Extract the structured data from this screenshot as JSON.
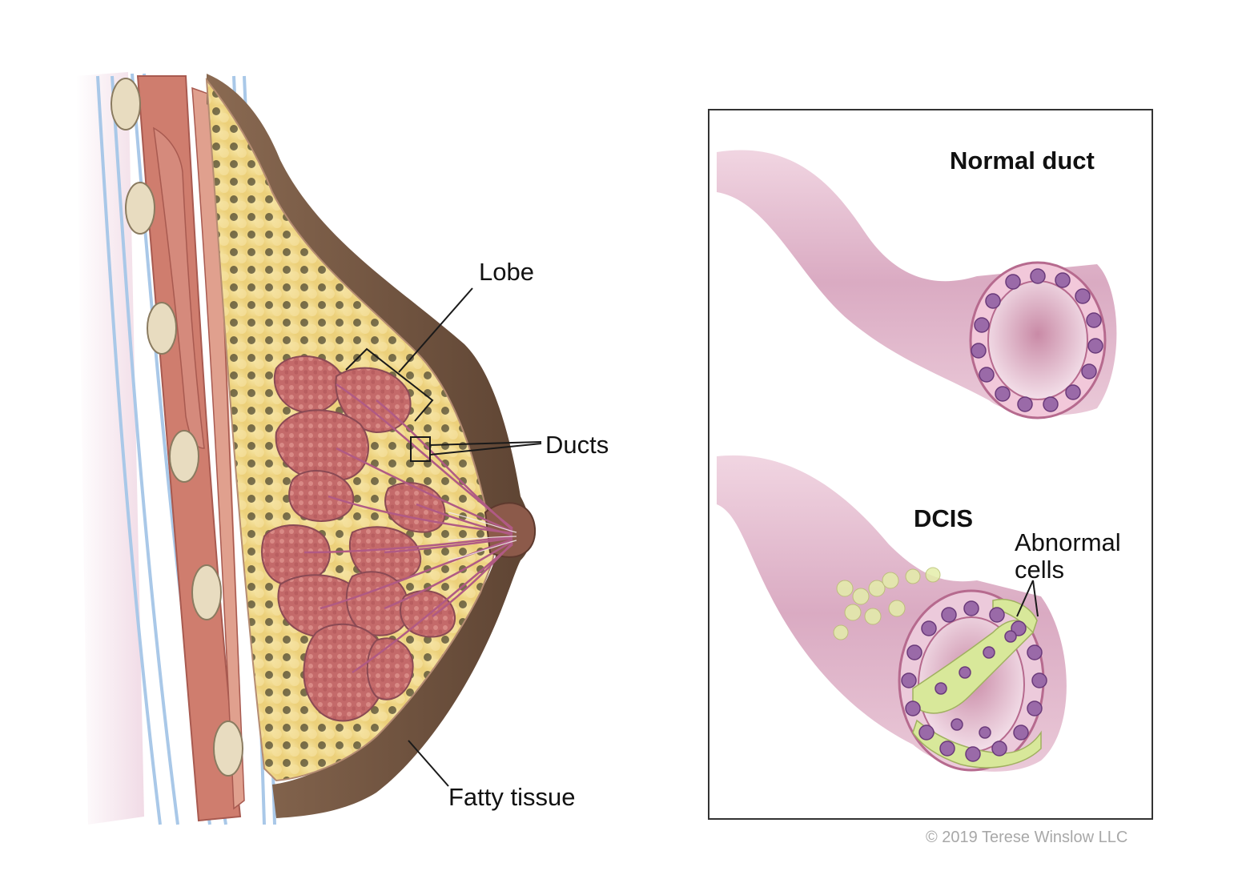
{
  "labels": {
    "lobe": "Lobe",
    "ducts": "Ducts",
    "fatty_tissue": "Fatty tissue",
    "normal_duct": "Normal duct",
    "dcis": "DCIS",
    "abnormal_cells_line1": "Abnormal",
    "abnormal_cells_line2": "cells"
  },
  "copyright": "© 2019 Terese Winslow LLC",
  "colors": {
    "skin": "#7a5a44",
    "fat": "#f3dc8c",
    "lobule": "#c96e6e",
    "muscle": "#cf7d6e",
    "duct_wall": "#e4b8cc",
    "nucleus": "#9a6aa8",
    "abnormal_cell": "#d8e89a",
    "frame": "#333333",
    "copyright": "#a8a8a8"
  }
}
